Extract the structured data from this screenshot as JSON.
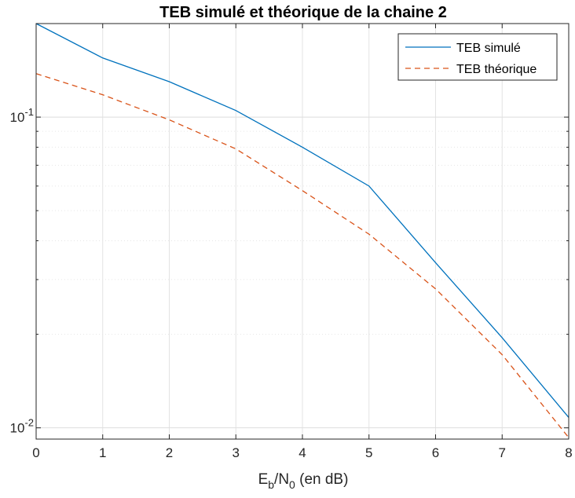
{
  "chart_data": {
    "type": "line",
    "title": "TEB simulé et théorique de la chaine 2",
    "xlabel": {
      "base": "E",
      "sub1": "b",
      "mid": "/N",
      "sub2": "0",
      "tail": " (en dB)"
    },
    "ylabel": "",
    "x": [
      0,
      1,
      2,
      3,
      4,
      5,
      6,
      7,
      8
    ],
    "xlim": [
      0,
      8
    ],
    "ylim": [
      0.0092,
      0.2
    ],
    "yscale": "log",
    "grid": true,
    "xticks": [
      "0",
      "1",
      "2",
      "3",
      "4",
      "5",
      "6",
      "7",
      "8"
    ],
    "yticks": [
      {
        "value": 0.1,
        "base": "10",
        "exp": "-1"
      },
      {
        "value": 0.01,
        "base": "10",
        "exp": "-2"
      }
    ],
    "legend_position": "top-right",
    "series": [
      {
        "name": "TEB simulé",
        "color": "#0072BD",
        "style": "solid",
        "values": [
          0.2,
          0.155,
          0.13,
          0.105,
          0.08,
          0.06,
          0.034,
          0.0195,
          0.0108
        ]
      },
      {
        "name": "TEB théorique",
        "color": "#D95319",
        "style": "dashed",
        "values": [
          0.138,
          0.118,
          0.098,
          0.079,
          0.058,
          0.042,
          0.028,
          0.0172,
          0.0093
        ]
      }
    ]
  }
}
